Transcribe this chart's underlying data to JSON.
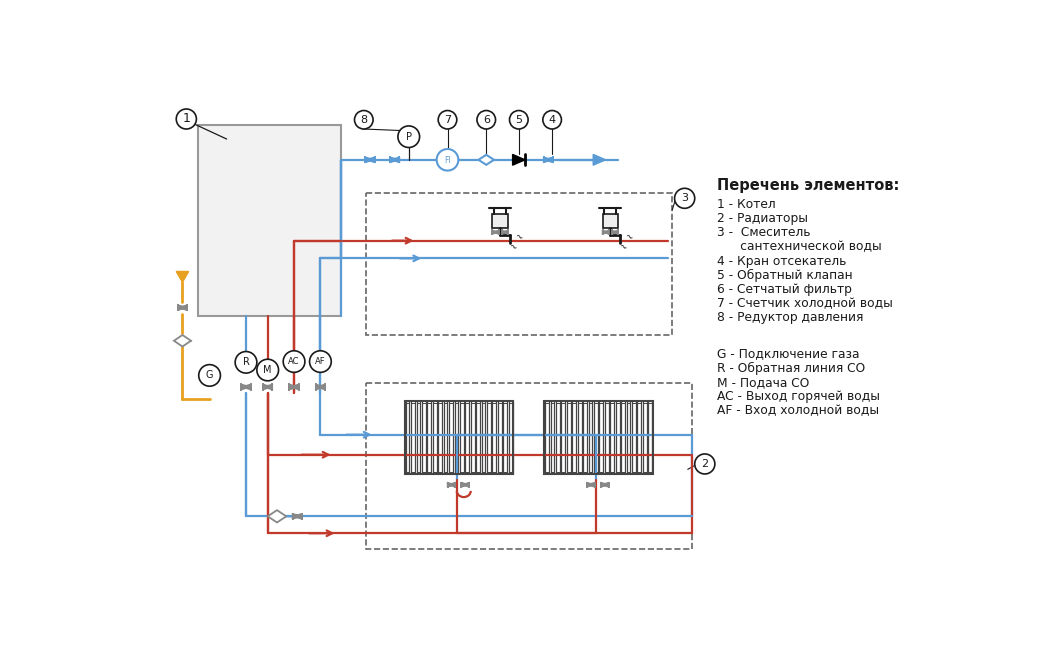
{
  "bg": "#ffffff",
  "blue": "#5b9bd5",
  "red": "#c0392b",
  "yellow": "#e8a020",
  "dark": "#1a1a1a",
  "gray": "#888888",
  "dash_col": "#666666",
  "boiler_fill": "#f2f2f2",
  "boiler_edge": "#999999",
  "rad_color": "#444444",
  "legend_title": "Перечень элементов:",
  "legend1": [
    "1 - Котел",
    "2 - Радиаторы",
    "3 -  Смеситель",
    "      сантехнической воды",
    "4 - Кран отсекатель",
    "5 - Обратный клапан",
    "6 - Сетчатый фильтр",
    "7 - Счетчик холодной воды",
    "8 - Редуктор давления"
  ],
  "legend2": [
    "G - Подключение газа",
    "R - Обратная линия СО",
    "M - Подача СО",
    "AC - Выход горячей воды",
    "AF - Вход холодной воды"
  ]
}
